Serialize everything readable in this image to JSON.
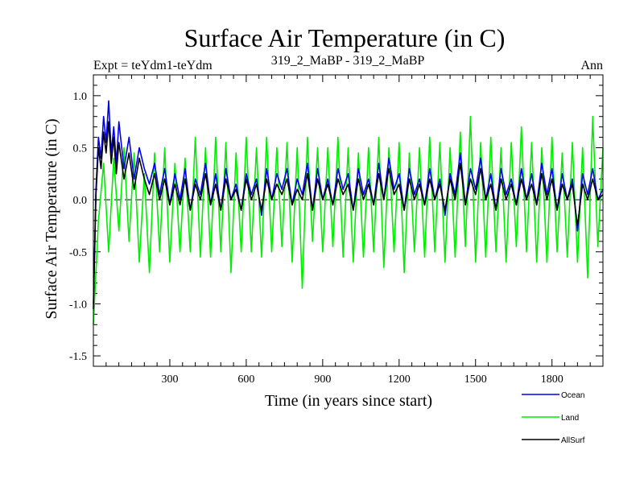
{
  "chart_data": {
    "type": "line",
    "title": "Surface Air Temperature (in C)",
    "subtitle_left": "Expt = teYdm1-teYdm",
    "subtitle_center": "319_2_MaBP - 319_2_MaBP",
    "subtitle_right": "Ann",
    "xlabel": "Time (in years since start)",
    "ylabel": "Surface Air Temperature (in C)",
    "xlim": [
      0,
      2000
    ],
    "ylim": [
      -1.6,
      1.2
    ],
    "xticks": [
      300,
      600,
      900,
      1200,
      1500,
      1800
    ],
    "xtick_labels": [
      "300",
      "600",
      "900",
      "1200",
      "1500",
      "1800"
    ],
    "yticks": [
      -1.5,
      -1.0,
      -0.5,
      0.0,
      0.5,
      1.0
    ],
    "ytick_labels": [
      "-1.5",
      "-1.0",
      "-0.5",
      "0.0",
      "0.5",
      "1.0"
    ],
    "zero_line": true,
    "legend": {
      "position": "bottom-right"
    },
    "series": [
      {
        "name": "Land",
        "color": "#00ee00",
        "x": [
          0,
          20,
          40,
          60,
          80,
          100,
          120,
          140,
          160,
          180,
          200,
          220,
          240,
          260,
          280,
          300,
          320,
          340,
          360,
          380,
          400,
          420,
          440,
          460,
          480,
          500,
          520,
          540,
          560,
          580,
          600,
          620,
          640,
          660,
          680,
          700,
          720,
          740,
          760,
          780,
          800,
          820,
          840,
          860,
          880,
          900,
          920,
          940,
          960,
          980,
          1000,
          1020,
          1040,
          1060,
          1080,
          1100,
          1120,
          1140,
          1160,
          1180,
          1200,
          1220,
          1240,
          1260,
          1280,
          1300,
          1320,
          1340,
          1360,
          1380,
          1400,
          1420,
          1440,
          1460,
          1480,
          1500,
          1520,
          1540,
          1560,
          1580,
          1600,
          1620,
          1640,
          1660,
          1680,
          1700,
          1720,
          1740,
          1760,
          1780,
          1800,
          1820,
          1840,
          1860,
          1880,
          1900,
          1920,
          1940,
          1960,
          1980,
          2000
        ],
        "values": [
          -1.2,
          -0.2,
          0.35,
          -0.5,
          0.4,
          -0.3,
          0.5,
          -0.4,
          0.45,
          -0.6,
          0.25,
          -0.7,
          0.45,
          -0.5,
          0.5,
          -0.6,
          0.35,
          -0.5,
          0.4,
          -0.5,
          0.6,
          -0.55,
          0.5,
          -0.55,
          0.6,
          -0.5,
          0.55,
          -0.7,
          0.45,
          -0.5,
          0.6,
          -0.5,
          0.5,
          -0.55,
          0.6,
          -0.5,
          0.5,
          -0.45,
          0.55,
          -0.6,
          0.5,
          -0.85,
          0.6,
          -0.4,
          0.5,
          -0.5,
          0.5,
          -0.45,
          0.6,
          -0.55,
          0.5,
          -0.6,
          0.45,
          -0.55,
          0.5,
          -0.5,
          0.6,
          -0.65,
          0.5,
          -0.5,
          0.55,
          -0.7,
          0.45,
          -0.5,
          0.5,
          -0.55,
          0.6,
          -0.5,
          0.55,
          -0.6,
          0.5,
          -0.55,
          0.65,
          -0.45,
          0.8,
          -0.6,
          0.55,
          -0.55,
          0.6,
          -0.5,
          0.5,
          -0.6,
          0.55,
          -0.45,
          0.7,
          -0.5,
          0.55,
          -0.6,
          0.5,
          -0.6,
          0.6,
          -0.5,
          0.45,
          -0.55,
          0.55,
          -0.6,
          0.5,
          -0.75,
          0.8,
          -0.45,
          0.5
        ]
      },
      {
        "name": "Ocean",
        "color": "#0000ee",
        "x": [
          0,
          10,
          20,
          30,
          40,
          50,
          60,
          70,
          80,
          90,
          100,
          120,
          140,
          160,
          180,
          200,
          220,
          240,
          260,
          280,
          300,
          320,
          340,
          360,
          380,
          400,
          420,
          440,
          460,
          480,
          500,
          520,
          540,
          560,
          580,
          600,
          620,
          640,
          660,
          680,
          700,
          720,
          740,
          760,
          780,
          800,
          820,
          840,
          860,
          880,
          900,
          920,
          940,
          960,
          980,
          1000,
          1020,
          1040,
          1060,
          1080,
          1100,
          1120,
          1140,
          1160,
          1180,
          1200,
          1220,
          1240,
          1260,
          1280,
          1300,
          1320,
          1340,
          1360,
          1380,
          1400,
          1420,
          1440,
          1460,
          1480,
          1500,
          1520,
          1540,
          1560,
          1580,
          1600,
          1620,
          1640,
          1660,
          1680,
          1700,
          1720,
          1740,
          1760,
          1780,
          1800,
          1820,
          1840,
          1860,
          1880,
          1900,
          1920,
          1940,
          1960,
          1980,
          2000
        ],
        "values": [
          -1.0,
          0.1,
          0.6,
          0.4,
          0.8,
          0.55,
          0.95,
          0.45,
          0.7,
          0.35,
          0.75,
          0.3,
          0.6,
          0.2,
          0.5,
          0.3,
          0.15,
          0.35,
          0.05,
          0.3,
          -0.05,
          0.25,
          0.0,
          0.3,
          -0.1,
          0.2,
          0.05,
          0.35,
          -0.05,
          0.25,
          -0.1,
          0.3,
          0.0,
          0.15,
          -0.1,
          0.25,
          0.05,
          0.2,
          -0.15,
          0.3,
          0.0,
          0.25,
          0.1,
          0.3,
          -0.05,
          0.2,
          0.05,
          0.35,
          -0.1,
          0.3,
          0.0,
          0.2,
          -0.05,
          0.3,
          0.1,
          0.25,
          -0.1,
          0.3,
          0.05,
          0.2,
          -0.05,
          0.35,
          0.0,
          0.4,
          0.1,
          0.25,
          -0.1,
          0.3,
          0.05,
          0.2,
          -0.05,
          0.3,
          0.0,
          0.2,
          -0.15,
          0.25,
          0.05,
          0.45,
          -0.05,
          0.3,
          0.1,
          0.4,
          0.0,
          0.25,
          -0.1,
          0.3,
          0.05,
          0.2,
          -0.05,
          0.3,
          0.0,
          0.25,
          -0.05,
          0.35,
          0.05,
          0.3,
          -0.1,
          0.25,
          0.0,
          0.2,
          -0.3,
          0.25,
          0.05,
          0.3,
          0.0,
          0.1
        ]
      },
      {
        "name": "AllSurf",
        "color": "#000000",
        "x": [
          0,
          10,
          20,
          30,
          40,
          50,
          60,
          70,
          80,
          90,
          100,
          120,
          140,
          160,
          180,
          200,
          220,
          240,
          260,
          280,
          300,
          320,
          340,
          360,
          380,
          400,
          420,
          440,
          460,
          480,
          500,
          520,
          540,
          560,
          580,
          600,
          620,
          640,
          660,
          680,
          700,
          720,
          740,
          760,
          780,
          800,
          820,
          840,
          860,
          880,
          900,
          920,
          940,
          960,
          980,
          1000,
          1020,
          1040,
          1060,
          1080,
          1100,
          1120,
          1140,
          1160,
          1180,
          1200,
          1220,
          1240,
          1260,
          1280,
          1300,
          1320,
          1340,
          1360,
          1380,
          1400,
          1420,
          1440,
          1460,
          1480,
          1500,
          1520,
          1540,
          1560,
          1580,
          1600,
          1620,
          1640,
          1660,
          1680,
          1700,
          1720,
          1740,
          1760,
          1780,
          1800,
          1820,
          1840,
          1860,
          1880,
          1900,
          1920,
          1940,
          1960,
          1980,
          2000
        ],
        "values": [
          -1.05,
          0.05,
          0.5,
          0.3,
          0.65,
          0.45,
          0.75,
          0.35,
          0.6,
          0.25,
          0.55,
          0.2,
          0.45,
          0.1,
          0.4,
          0.2,
          0.05,
          0.25,
          0.0,
          0.2,
          -0.05,
          0.15,
          -0.05,
          0.2,
          -0.1,
          0.15,
          0.0,
          0.25,
          -0.05,
          0.15,
          -0.1,
          0.2,
          0.0,
          0.1,
          -0.1,
          0.2,
          0.0,
          0.15,
          -0.1,
          0.2,
          0.0,
          0.15,
          0.05,
          0.2,
          -0.05,
          0.1,
          0.0,
          0.25,
          -0.1,
          0.2,
          0.0,
          0.15,
          -0.05,
          0.2,
          0.05,
          0.15,
          -0.1,
          0.2,
          0.0,
          0.15,
          -0.05,
          0.25,
          0.0,
          0.3,
          0.05,
          0.15,
          -0.1,
          0.2,
          0.0,
          0.15,
          -0.05,
          0.2,
          0.0,
          0.15,
          -0.1,
          0.2,
          0.0,
          0.35,
          -0.05,
          0.2,
          0.05,
          0.3,
          0.0,
          0.15,
          -0.1,
          0.2,
          0.0,
          0.15,
          -0.05,
          0.2,
          0.0,
          0.15,
          -0.05,
          0.25,
          0.0,
          0.2,
          -0.1,
          0.15,
          0.0,
          0.15,
          -0.25,
          0.15,
          0.0,
          0.2,
          0.0,
          0.05
        ]
      }
    ]
  }
}
